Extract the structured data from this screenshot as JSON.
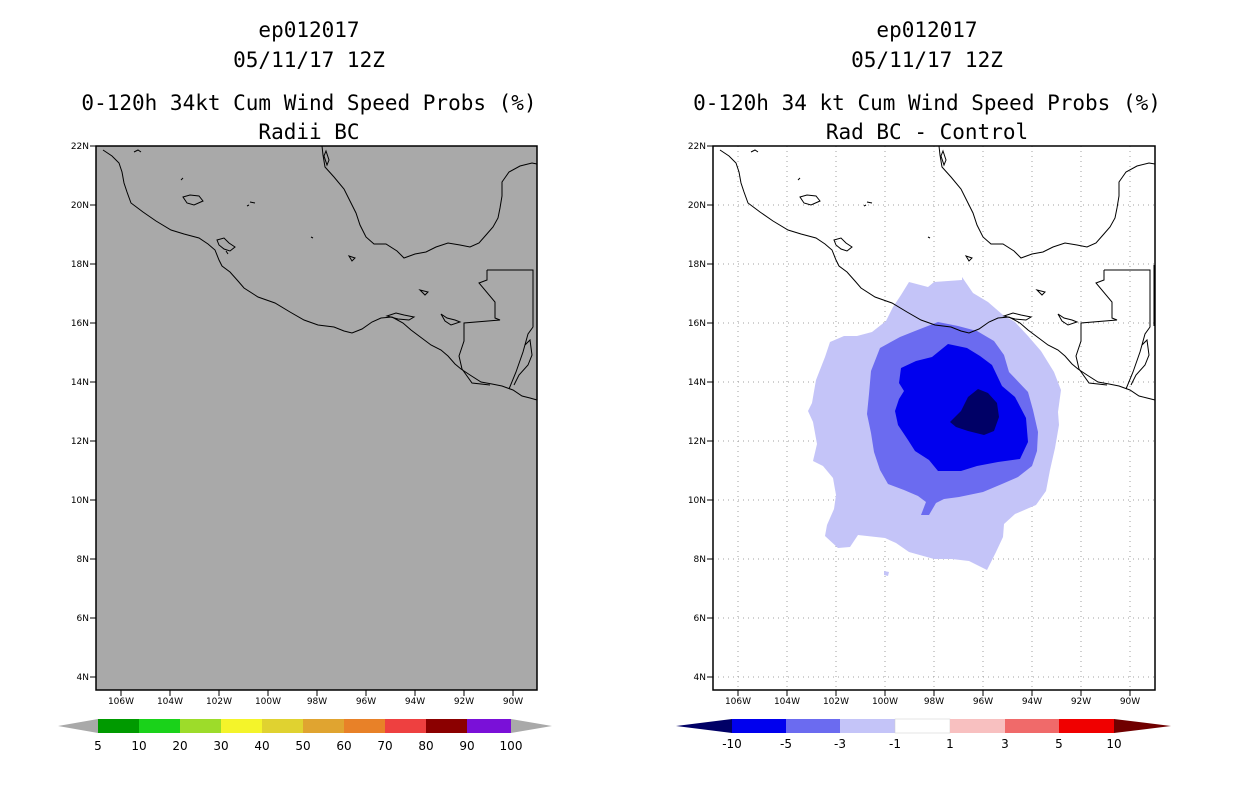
{
  "left_panel": {
    "storm_id": "ep012017",
    "date_time": "05/11/17 12Z",
    "title": "0-120h 34kt Cum Wind Speed Probs (%)",
    "subtitle": "Radii BC",
    "map_fill_color": "#a9a9a9",
    "lat_labels": [
      "22N",
      "20N",
      "18N",
      "16N",
      "14N",
      "12N",
      "10N",
      "8N",
      "6N",
      "4N"
    ],
    "lon_labels": [
      "106W",
      "104W",
      "102W",
      "100W",
      "98W",
      "96W",
      "94W",
      "92W",
      "90W"
    ],
    "colorbar": {
      "labels": [
        "5",
        "10",
        "20",
        "30",
        "40",
        "50",
        "60",
        "70",
        "80",
        "90",
        "100"
      ],
      "colors": [
        "#a9a9a9",
        "#009a00",
        "#1ad21a",
        "#9ddc2a",
        "#f4f42a",
        "#e0d230",
        "#e0a430",
        "#e88128",
        "#ee4040",
        "#8b0000",
        "#7a10d8",
        "#a9a9a9"
      ]
    }
  },
  "right_panel": {
    "storm_id": "ep012017",
    "date_time": "05/11/17 12Z",
    "title": "0-120h 34 kt Cum Wind Speed Probs (%)",
    "subtitle": "Rad BC - Control",
    "lat_labels": [
      "22N",
      "20N",
      "18N",
      "16N",
      "14N",
      "12N",
      "10N",
      "8N",
      "6N",
      "4N"
    ],
    "lon_labels": [
      "106W",
      "104W",
      "102W",
      "100W",
      "98W",
      "96W",
      "94W",
      "92W",
      "90W"
    ],
    "colorbar": {
      "labels": [
        "-10",
        "-5",
        "-3",
        "-1",
        "1",
        "3",
        "5",
        "10"
      ],
      "colors": [
        "#000066",
        "#0000ee",
        "#6b6bf0",
        "#c4c4f8",
        "#ffffff",
        "#f8c0c0",
        "#f06a6a",
        "#f00000",
        "#700000"
      ]
    },
    "contour_levels": [
      "-1",
      "-3",
      "-5",
      "-10"
    ],
    "contour_colors": [
      "#c4c4f8",
      "#6b6bf0",
      "#0000ee",
      "#000066"
    ]
  }
}
